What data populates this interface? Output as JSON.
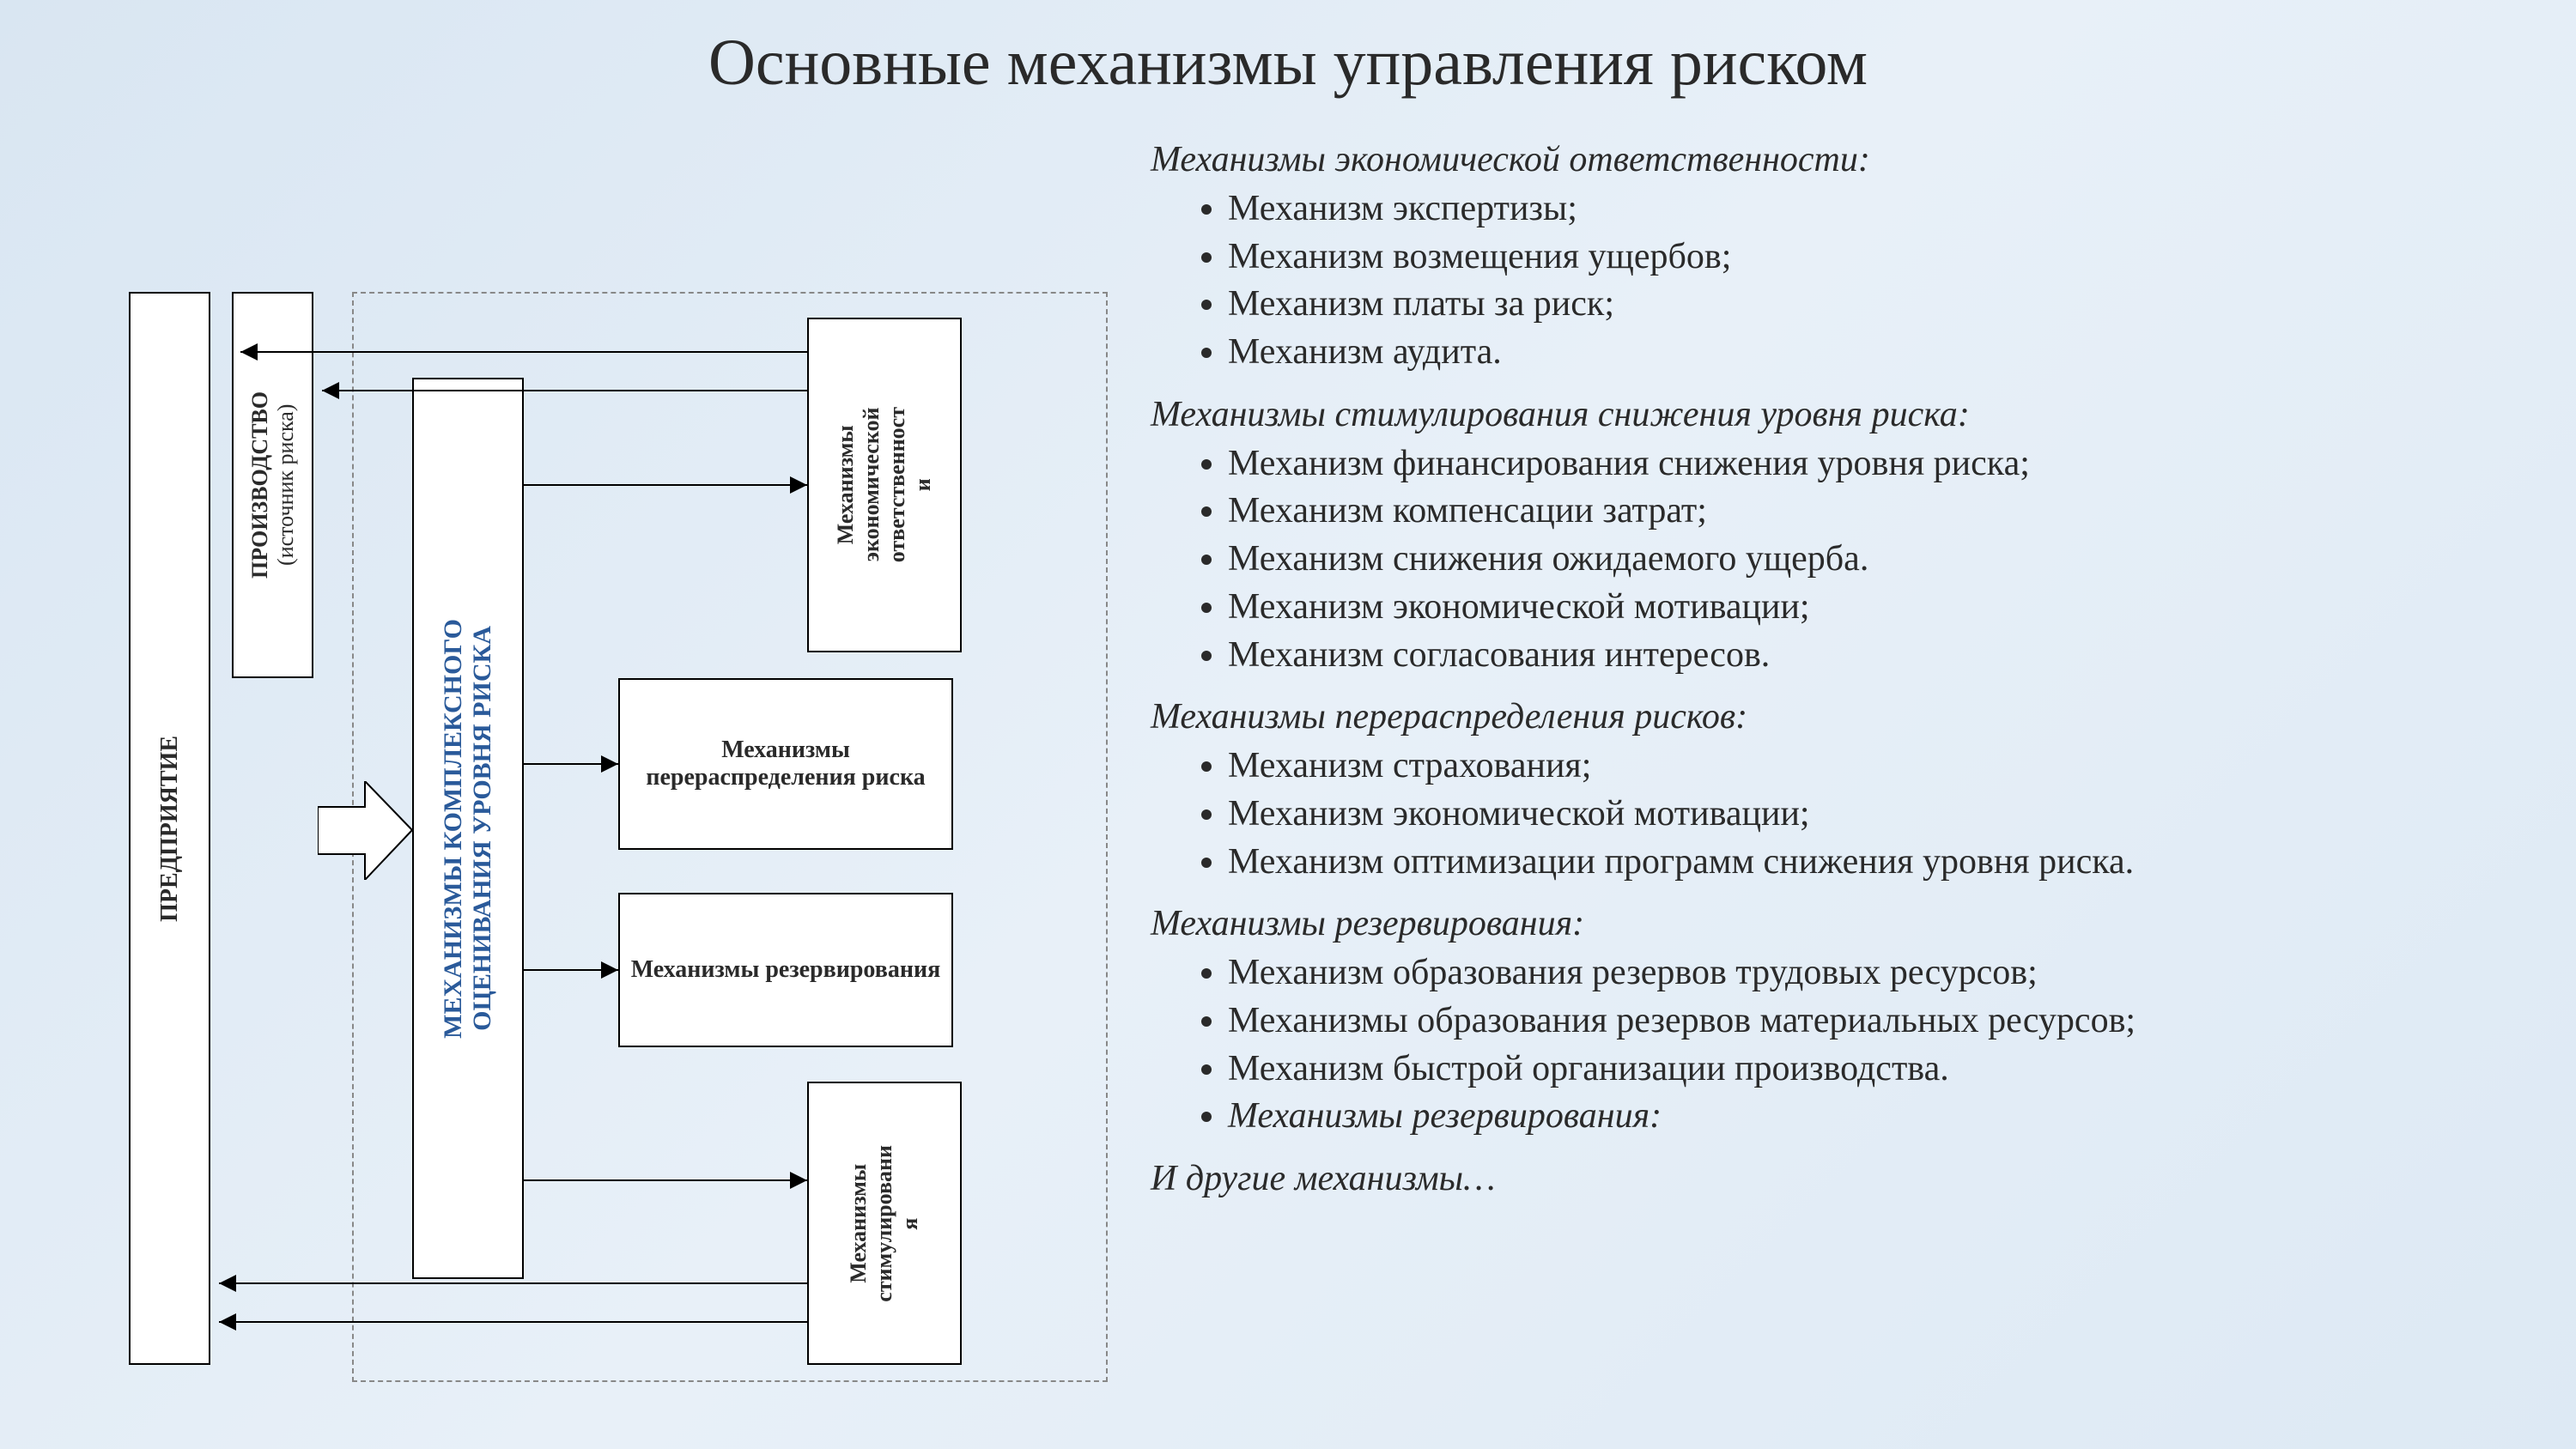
{
  "title": "Основные механизмы управления риском",
  "styling": {
    "background_gradient": [
      "#d9e6f2",
      "#e8f0f8",
      "#dde9f4"
    ],
    "title_fontsize": 76,
    "body_fontsize": 42,
    "diagram_label_fontsize": 28,
    "accent_color": "#2a5a9a",
    "box_border_color": "#000000",
    "box_background": "#ffffff",
    "dashed_border_color": "#888888",
    "text_color": "#2a2a2a",
    "font_family": "Times New Roman"
  },
  "diagram": {
    "type": "flowchart",
    "boxes": {
      "enterprise": "ПРЕДПРИЯТИЕ",
      "production_line1": "ПРОИЗВОДСТВО",
      "production_line2": "(источник риска)",
      "complex_line1": "МЕХАНИЗМЫ КОМПЛЕКСНОГО",
      "complex_line2": "ОЦЕНИВАНИЯ УРОВНЯ РИСКА",
      "econ_resp": "Механизмы\nэкономической\nответственност\nи",
      "redistribution": "Механизмы перераспределения риска",
      "reservation": "Механизмы резервирования",
      "stimulation": "Механизмы\nстимулировани\nя"
    },
    "arrows": [
      {
        "from": "complex",
        "to": "econ_resp",
        "bidirectional": false
      },
      {
        "from": "complex",
        "to": "redistribution",
        "bidirectional": false
      },
      {
        "from": "complex",
        "to": "reservation",
        "bidirectional": false
      },
      {
        "from": "complex",
        "to": "stimulation",
        "bidirectional": false
      },
      {
        "from": "econ_resp",
        "to": "production",
        "feedback": true
      },
      {
        "from": "stimulation",
        "to": "enterprise",
        "feedback": true
      },
      {
        "from": "production",
        "to": "complex",
        "big_arrow": true
      }
    ]
  },
  "groups": [
    {
      "title": "Механизмы экономической ответственности:",
      "items": [
        "Механизм экспертизы;",
        "Механизм возмещения ущербов;",
        "Механизм платы за риск;",
        "Механизм аудита."
      ]
    },
    {
      "title": "Механизмы стимулирования снижения уровня риска:",
      "items": [
        "Механизм финансирования снижения уровня риска;",
        "Механизм компенсации затрат;",
        "Механизм снижения ожидаемого ущерба.",
        "Механизм экономической мотивации;",
        "Механизм согласования интересов."
      ]
    },
    {
      "title": "Механизмы перераспределения рисков:",
      "items": [
        "Механизм страхования;",
        "Механизм экономической мотивации;",
        "Механизм оптимизации программ снижения уровня риска."
      ]
    },
    {
      "title": "Механизмы резервирования:",
      "items": [
        "Механизм образования резервов трудовых ресурсов;",
        "Механизмы образования резервов материальных ресурсов;",
        "Механизм быстрой организации производства.",
        {
          "text": "Механизмы резервирования:",
          "italic": true
        }
      ]
    }
  ],
  "closing": "И другие механизмы…"
}
